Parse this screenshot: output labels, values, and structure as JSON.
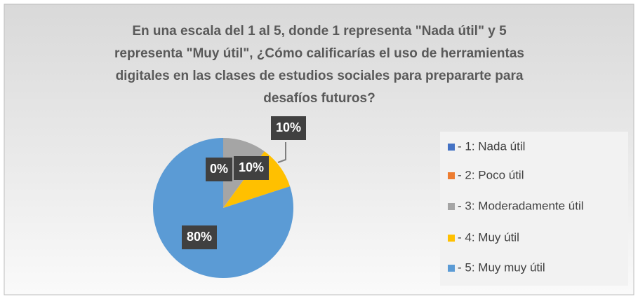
{
  "chart_data": {
    "type": "pie",
    "title": [
      "En una escala del 1 al 5, donde 1 representa \"Nada útil\" y 5",
      "representa \"Muy útil\", ¿Cómo calificarías el uso de herramientas",
      "digitales en las clases de estudios sociales para prepararte para",
      "desafíos futuros?"
    ],
    "categories": [
      "- 1: Nada útil",
      "- 2: Poco útil",
      "- 3: Moderadamente útil",
      "- 4: Muy útil",
      "- 5: Muy muy útil"
    ],
    "values": [
      0,
      0,
      10,
      10,
      80
    ],
    "value_labels": [
      "0%",
      "0%",
      "10%",
      "10%",
      "80%"
    ],
    "colors": [
      "#4472c4",
      "#ed7d31",
      "#a5a5a5",
      "#ffc000",
      "#5b9bd5"
    ],
    "legend": "right"
  }
}
